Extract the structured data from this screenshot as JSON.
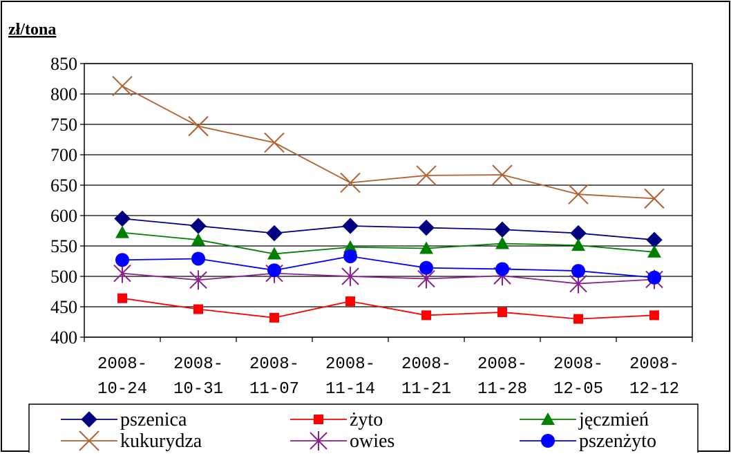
{
  "chart_data": {
    "type": "line",
    "ylabel": "zł/tona",
    "ylim": [
      400,
      850
    ],
    "yticks": [
      850,
      800,
      750,
      700,
      650,
      600,
      550,
      500,
      450,
      400
    ],
    "categories": [
      [
        "2008-",
        "10-24"
      ],
      [
        "2008-",
        "10-31"
      ],
      [
        "2008-",
        "11-07"
      ],
      [
        "2008-",
        "11-14"
      ],
      [
        "2008-",
        "11-21"
      ],
      [
        "2008-",
        "11-28"
      ],
      [
        "2008-",
        "12-05"
      ],
      [
        "2008-",
        "12-12"
      ]
    ],
    "grid": "horizontal",
    "legend_position": "bottom",
    "series": [
      {
        "name": "pszenica",
        "color": "#000080",
        "marker": "diamond",
        "values": [
          595,
          583,
          571,
          583,
          580,
          577,
          571,
          560
        ]
      },
      {
        "name": "żyto",
        "color": "#ff0000",
        "marker": "square",
        "values": [
          464,
          446,
          432,
          459,
          436,
          441,
          430,
          436
        ]
      },
      {
        "name": "jęczmień",
        "color": "#008000",
        "marker": "triangle",
        "values": [
          572,
          560,
          537,
          548,
          546,
          554,
          551,
          540
        ]
      },
      {
        "name": "kukurydza",
        "color": "#b35f2f",
        "marker": "x",
        "values": [
          813,
          747,
          720,
          654,
          666,
          667,
          635,
          628
        ]
      },
      {
        "name": "owies",
        "color": "#8b1f8b",
        "marker": "asterisk",
        "values": [
          505,
          494,
          505,
          500,
          496,
          501,
          488,
          495
        ]
      },
      {
        "name": "pszenżyto",
        "color": "#0000ff",
        "marker": "circle",
        "values": [
          527,
          529,
          510,
          533,
          514,
          512,
          509,
          498
        ]
      }
    ]
  }
}
